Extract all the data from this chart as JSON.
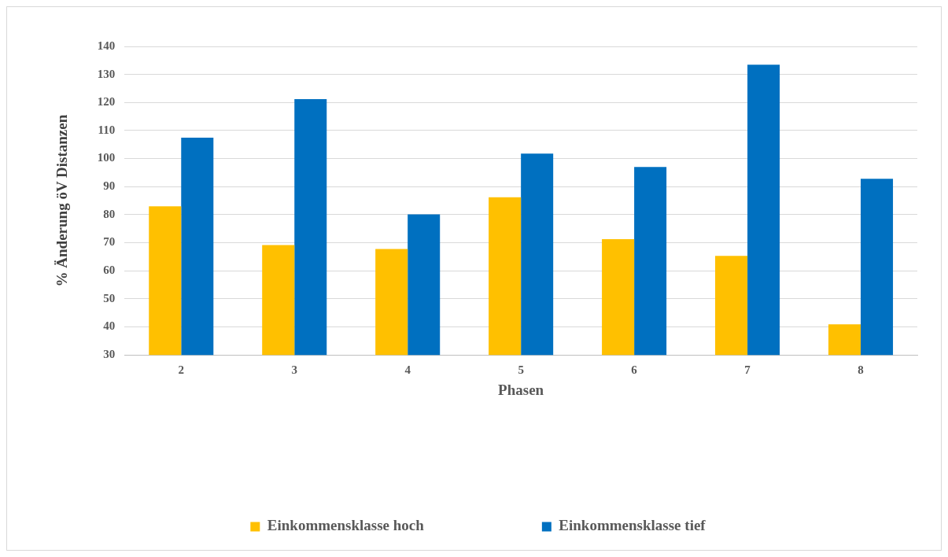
{
  "chart_data": {
    "type": "bar",
    "xlabel": "Phasen",
    "ylabel": "% Änderung öV Distanzen",
    "categories": [
      "2",
      "3",
      "4",
      "5",
      "6",
      "7",
      "8"
    ],
    "series": [
      {
        "name": "Einkommensklasse hoch",
        "color": "#ffc000",
        "values": [
          83.0,
          69.2,
          67.8,
          86.2,
          71.3,
          65.3,
          40.9
        ]
      },
      {
        "name": "Einkommensklasse tief",
        "color": "#0070c0",
        "values": [
          107.5,
          121.2,
          80.1,
          101.8,
          97.0,
          133.5,
          92.8
        ]
      }
    ],
    "ylim": [
      30,
      140
    ],
    "yticks": [
      30,
      40,
      50,
      60,
      70,
      80,
      90,
      100,
      110,
      120,
      130,
      140
    ],
    "grid": "y",
    "legend": "bottom"
  }
}
